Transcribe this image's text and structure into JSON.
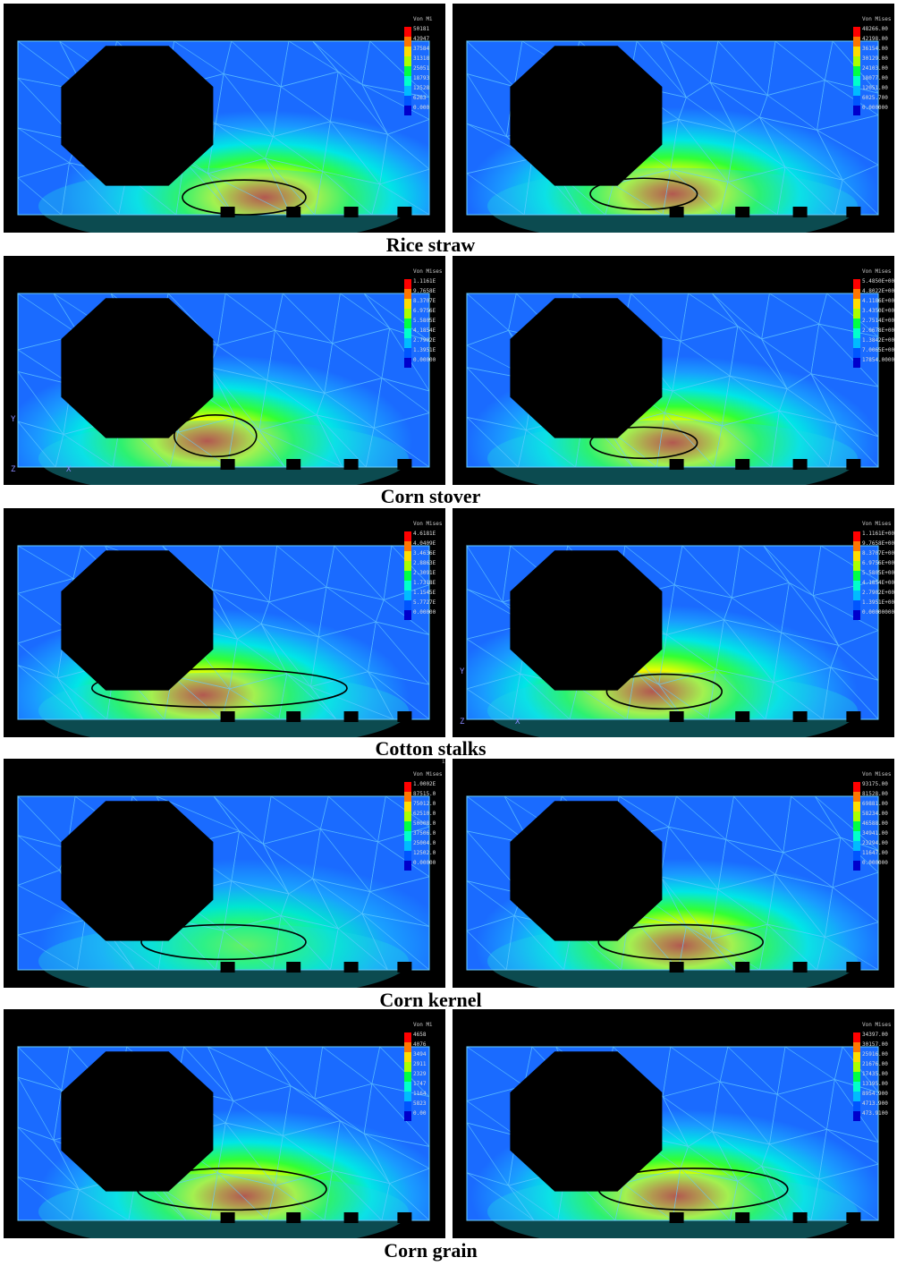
{
  "captions": [
    "Rice straw",
    "Corn stover",
    "Cotton stalks",
    "Corn kernel",
    "Corn grain"
  ],
  "panels": [
    {
      "id": "rice-left",
      "legend_title": "Von Mi",
      "legend_values": [
        "50181",
        "43947",
        "37584",
        "31318",
        "25051",
        "18793",
        "12528",
        "6263",
        "0.000"
      ]
    },
    {
      "id": "rice-right",
      "legend_title": "Von Mises",
      "legend_values": [
        "48266.00",
        "42198.00",
        "36154.00",
        "30129.00",
        "24103.00",
        "18077.00",
        "12051.00",
        "6025.700",
        "0.000000"
      ]
    },
    {
      "id": "stover-left",
      "legend_title": "Von Mises",
      "legend_values": [
        "1.1161E",
        "9.7658E",
        "8.3707E",
        "6.9756E",
        "5.5805E",
        "4.1854E",
        "2.7902E",
        "1.3951E",
        "0.00000"
      ]
    },
    {
      "id": "stover-right",
      "legend_title": "Von Mises",
      "legend_values": [
        "5.4850E+006",
        "4.8022E+006",
        "4.1186E+006",
        "3.4350E+006",
        "2.7514E+006",
        "2.0678E+006",
        "1.3842E+006",
        "7.0065E+005",
        "17854.00000"
      ]
    },
    {
      "id": "cotton-left",
      "legend_title": "Von Mises",
      "legend_values": [
        "4.6181E",
        "4.0409E",
        "3.4636E",
        "2.8863E",
        "2.3091E",
        "1.7318E",
        "1.1545E",
        "5.7727E",
        "0.00000"
      ]
    },
    {
      "id": "cotton-right",
      "legend_title": "Von Mises",
      "legend_values": [
        "1.1161E+008",
        "9.7658E+007",
        "8.3707E+007",
        "6.9756E+007",
        "5.5805E+007",
        "4.1854E+007",
        "2.7902E+007",
        "1.3951E+007",
        "0.000000000"
      ]
    },
    {
      "id": "kernel-left",
      "legend_title": "Von Mises",
      "legend_values": [
        "1.0002E",
        "87515.0",
        "75012.0",
        "62510.0",
        "50008.0",
        "37506.0",
        "25004.0",
        "12502.0",
        "0.00000"
      ]
    },
    {
      "id": "kernel-right",
      "legend_title": "Von Mises",
      "legend_values": [
        "93175.00",
        "81528.00",
        "69881.00",
        "58234.00",
        "46588.00",
        "34941.00",
        "23294.00",
        "11647.00",
        "0.000000"
      ]
    },
    {
      "id": "grain-left",
      "legend_title": "Von Mi",
      "legend_values": [
        "4658",
        "4076",
        "3494",
        "2911",
        "2329",
        "1747",
        "1164",
        "5823",
        "0.00"
      ]
    },
    {
      "id": "grain-right",
      "legend_title": "Von Mises",
      "legend_values": [
        "34397.00",
        "30157.00",
        "25916.00",
        "21676.00",
        "17435.00",
        "13195.00",
        "8954.900",
        "4713.900",
        "473.9100"
      ]
    }
  ],
  "axis_labels": {
    "y": "Y",
    "z": "Z",
    "x": "X"
  },
  "tiny_text": "in stress c?l",
  "colors": {
    "background": "#000000",
    "mesh": "#66ccff",
    "hole": "#000000",
    "ellipse": "#000000"
  }
}
